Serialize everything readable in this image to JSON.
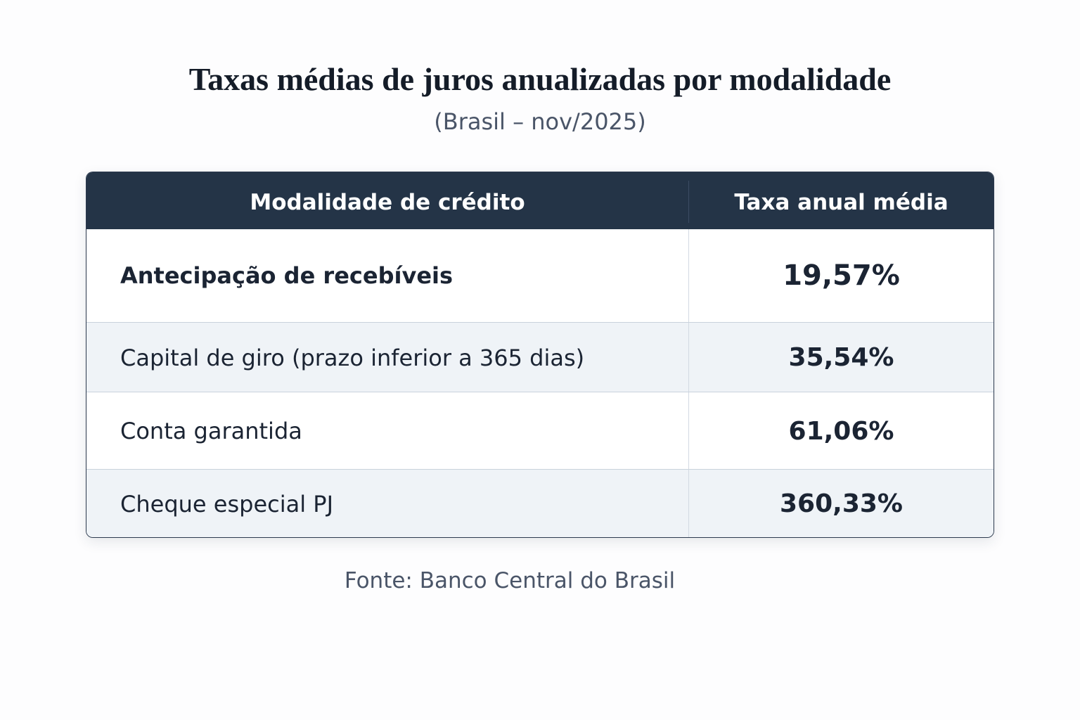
{
  "header": {
    "title": "Taxas médias de juros anualizadas por modalidade",
    "subtitle": "(Brasil – nov/2025)"
  },
  "table": {
    "columns": [
      "Modalidade de crédito",
      "Taxa anual média"
    ],
    "rows": [
      [
        "Antecipação de recebíveis",
        "19,57%"
      ],
      [
        "Capital de giro (prazo inferior a 365 dias)",
        "35,54%"
      ],
      [
        "Conta garantida",
        "61,06%"
      ],
      [
        "Cheque especial PJ",
        "360,33%"
      ]
    ]
  },
  "footer": {
    "source": "Fonte: Banco Central do Brasil"
  }
}
